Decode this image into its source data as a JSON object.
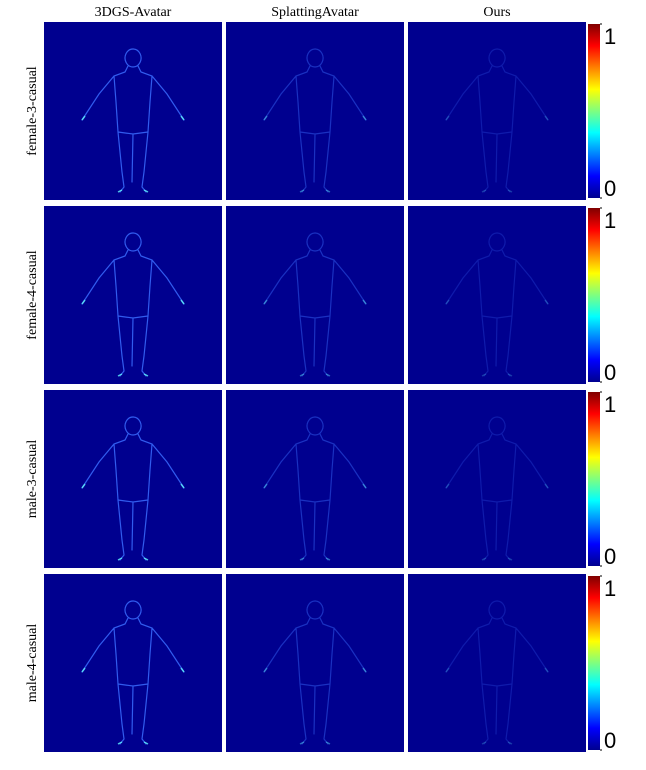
{
  "figure": {
    "columns": [
      "3DGS-Avatar",
      "SplattingAvatar",
      "Ours"
    ],
    "rows": [
      "female-3-casual",
      "female-4-casual",
      "male-3-casual",
      "male-4-casual"
    ],
    "colorbar": {
      "ticks": [
        0,
        1
      ],
      "lim": [
        0,
        1
      ]
    }
  }
}
